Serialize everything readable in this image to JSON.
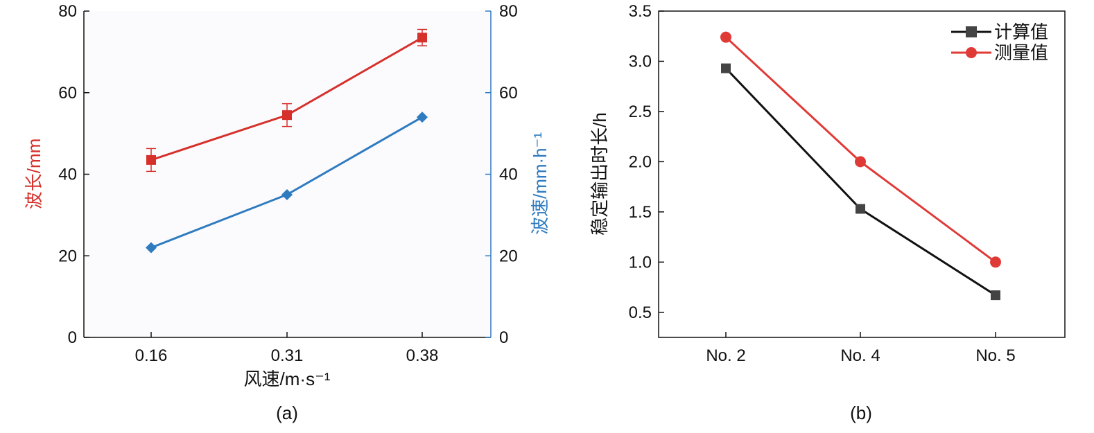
{
  "chart_data": [
    {
      "panel": "(a)",
      "type": "line",
      "categories": [
        "0.16",
        "0.31",
        "0.38"
      ],
      "xlabel": "风速/m·s⁻¹",
      "ylabel_left": "波长/mm",
      "ylabel_right": "波速/mm·h⁻¹",
      "ylim_left": [
        0,
        80
      ],
      "ylim_right": [
        0,
        80
      ],
      "yticks_left": [
        "0",
        "20",
        "40",
        "60",
        "80"
      ],
      "yticks_right": [
        "0",
        "20",
        "40",
        "60",
        "80"
      ],
      "series": [
        {
          "axis": "left",
          "marker": "square",
          "color": "#d6302b",
          "values": [
            43.5,
            54.5,
            73.5
          ],
          "error": [
            2.8,
            2.8,
            2.0
          ]
        },
        {
          "axis": "right",
          "marker": "diamond",
          "color": "#2f7bbf",
          "values": [
            22,
            35,
            54
          ]
        }
      ]
    },
    {
      "panel": "(b)",
      "type": "line",
      "categories": [
        "No. 2",
        "No. 4",
        "No. 5"
      ],
      "ylabel": "稳定输出时长/h",
      "ylim": [
        0.25,
        3.5
      ],
      "yticks": [
        "0.5",
        "1.0",
        "1.5",
        "2.0",
        "2.5",
        "3.0",
        "3.5"
      ],
      "legend_position": "top-right",
      "series": [
        {
          "name": "计算值",
          "marker": "square",
          "color": "#111111",
          "marker_color": "#444444",
          "values": [
            2.93,
            1.53,
            0.67
          ]
        },
        {
          "name": "测量值",
          "marker": "circle",
          "color": "#e03a36",
          "values": [
            3.24,
            2.0,
            1.0
          ]
        }
      ]
    }
  ]
}
